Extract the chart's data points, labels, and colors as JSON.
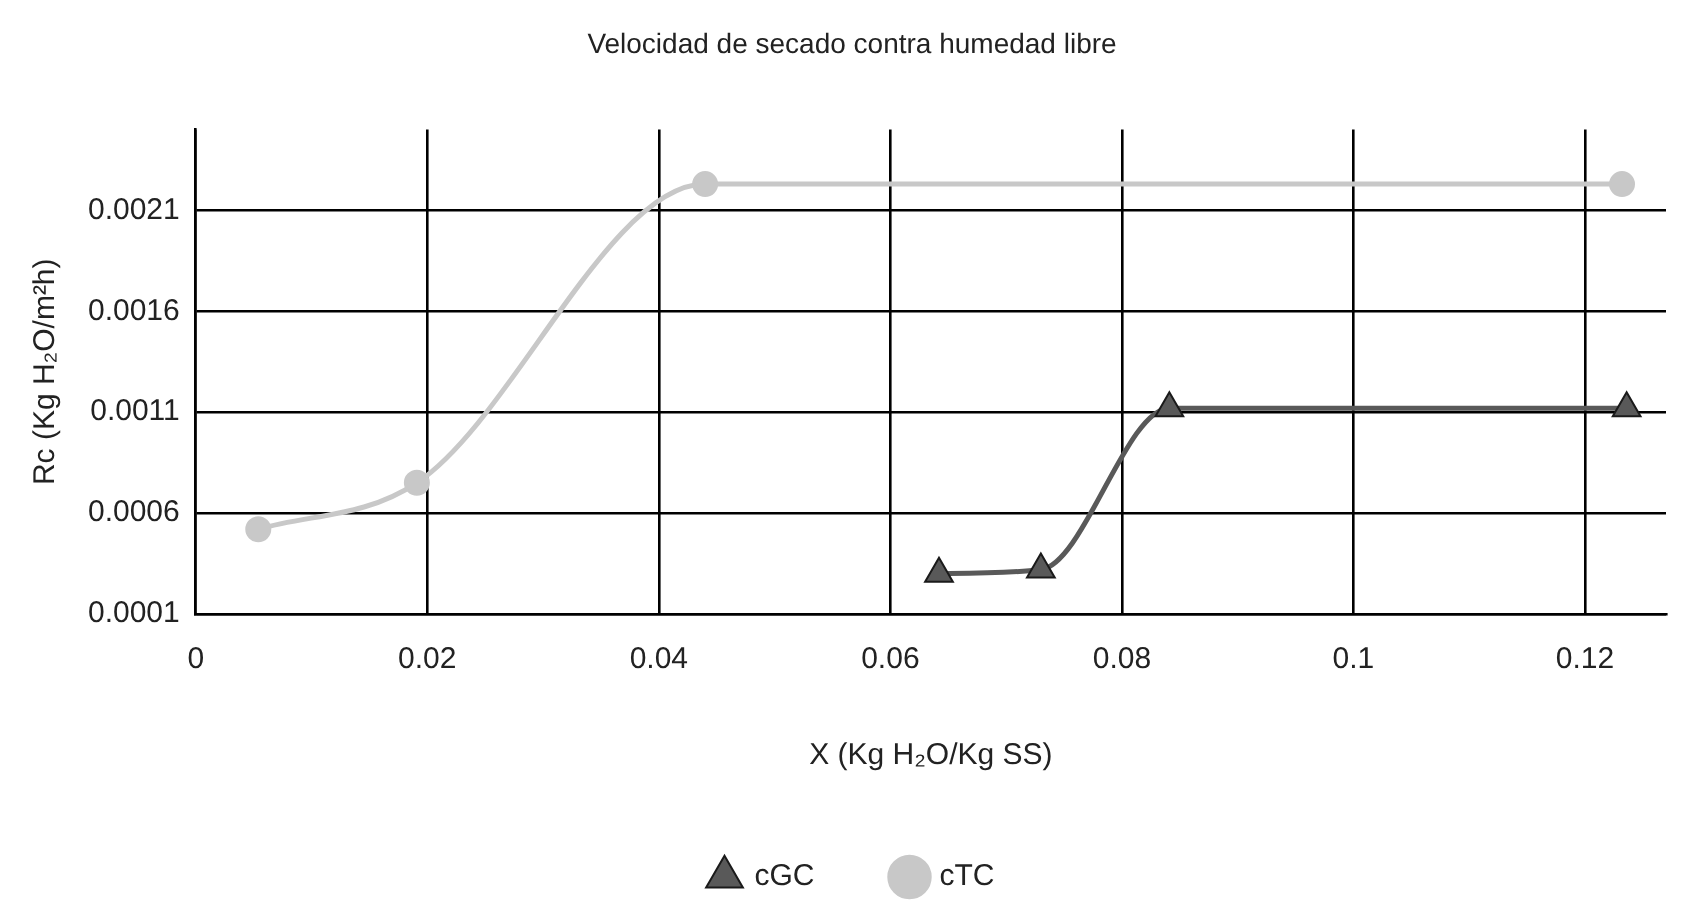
{
  "chart_data": {
    "type": "line",
    "title": "Velocidad de secado contra humedad libre",
    "xlabel": "X (Kg H₂O/Kg SS)",
    "ylabel": "Rc (Kg H₂O/m²h)",
    "xlim": [
      0,
      0.127
    ],
    "xticks": [
      0,
      0.02,
      0.04,
      0.06,
      0.08,
      0.1,
      0.12
    ],
    "ylim": [
      0.0001,
      0.0025
    ],
    "yticks": [
      0.0001,
      0.0006,
      0.0011,
      0.0016,
      0.0021
    ],
    "grid": true,
    "legend": "bottom",
    "series": [
      {
        "name": "cGC",
        "color": "#595959",
        "marker": "triangle",
        "x": [
          0.0642,
          0.073,
          0.0841,
          0.1236
        ],
        "values": [
          0.0003,
          0.00032,
          0.00112,
          0.00112
        ]
      },
      {
        "name": "cTC",
        "color": "#c8c8c8",
        "marker": "circle",
        "x": [
          0.0054,
          0.0191,
          0.044,
          0.1232
        ],
        "values": [
          0.00052,
          0.00075,
          0.00223,
          0.00223
        ]
      }
    ]
  }
}
